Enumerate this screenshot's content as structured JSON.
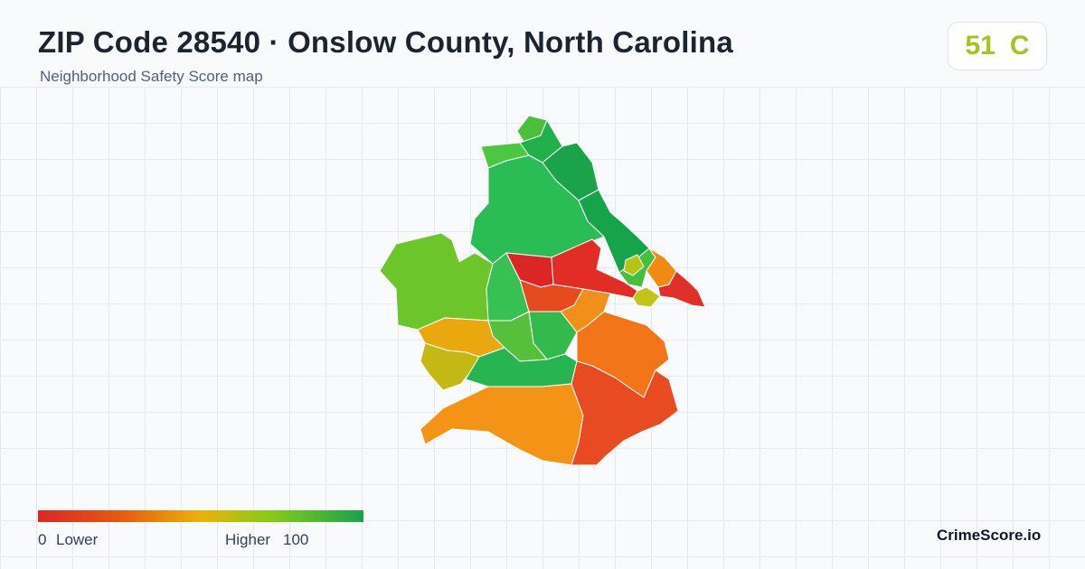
{
  "header": {
    "title": "ZIP Code 28540 · Onslow County, North Carolina",
    "subtitle": "Neighborhood Safety Score map"
  },
  "score": {
    "value": "51",
    "grade": "C",
    "color": "#a9c21e"
  },
  "legend": {
    "min": "0",
    "low_label": "Lower",
    "high_label": "Higher",
    "max": "100",
    "colors": [
      "#dc2626",
      "#ea580c",
      "#eab308",
      "#84cc16",
      "#16a34a"
    ]
  },
  "brand": "CrimeScore.io",
  "map": {
    "regions": [
      {
        "name": "north-tip",
        "color": "#4cc03a"
      },
      {
        "name": "north-left",
        "color": "#4dc740"
      },
      {
        "name": "north-upper",
        "color": "#22b04a"
      },
      {
        "name": "north-right",
        "color": "#1aa34a"
      },
      {
        "name": "north-central",
        "color": "#2bbd55"
      },
      {
        "name": "north-east-strip",
        "color": "#16a34a"
      },
      {
        "name": "west",
        "color": "#6cc52a"
      },
      {
        "name": "central-left",
        "color": "#38c153"
      },
      {
        "name": "central-red",
        "color": "#dc2626"
      },
      {
        "name": "central-red-east",
        "color": "#e12d26"
      },
      {
        "name": "central-orange",
        "color": "#e84a1f"
      },
      {
        "name": "east-cluster-green",
        "color": "#45bf40"
      },
      {
        "name": "east-cluster-yellow",
        "color": "#b8c414"
      },
      {
        "name": "east-cluster-orange",
        "color": "#f08a12"
      },
      {
        "name": "east-cluster-red",
        "color": "#e0302a"
      },
      {
        "name": "east-lime",
        "color": "#c2c41a"
      },
      {
        "name": "center-orange",
        "color": "#f0901a"
      },
      {
        "name": "center-green",
        "color": "#32ba4c"
      },
      {
        "name": "center-green-2",
        "color": "#56c03c"
      },
      {
        "name": "southwest-amber",
        "color": "#e8a80e"
      },
      {
        "name": "southwest-olive",
        "color": "#c3b814"
      },
      {
        "name": "south-green",
        "color": "#28b450"
      },
      {
        "name": "south-orange",
        "color": "#f39417"
      },
      {
        "name": "southeast-orange",
        "color": "#f2751a"
      },
      {
        "name": "southeast-red",
        "color": "#e84a22"
      }
    ]
  }
}
